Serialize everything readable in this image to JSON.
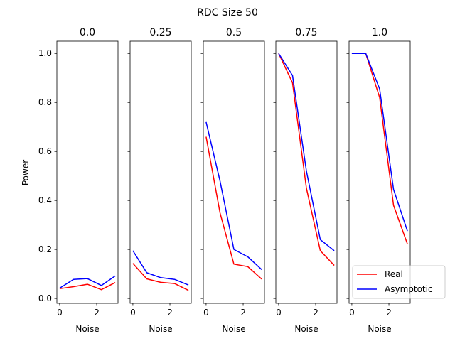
{
  "chart_data": {
    "suptitle": "RDC Size 50",
    "type": "line",
    "ylabel": "Power",
    "xlabel": "Noise",
    "x": [
      0,
      0.75,
      1.5,
      2.25,
      3.0
    ],
    "xlim": [
      -0.15,
      3.15
    ],
    "ylim": [
      -0.02,
      1.05
    ],
    "xticks": [
      0,
      2
    ],
    "yticks": [
      0.0,
      0.2,
      0.4,
      0.6,
      0.8,
      1.0
    ],
    "ytick_labels": [
      "0.0",
      "0.2",
      "0.4",
      "0.6",
      "0.8",
      "1.0"
    ],
    "legend": {
      "location": "lower right",
      "entries": [
        "Real",
        "Asymptotic"
      ]
    },
    "series_styles": [
      {
        "name": "Real",
        "color": "#ff0000"
      },
      {
        "name": "Asymptotic",
        "color": "#0000ff"
      }
    ],
    "panels": [
      {
        "title": "0.0",
        "series": [
          {
            "name": "Real",
            "values": [
              0.04,
              0.048,
              0.058,
              0.036,
              0.065
            ]
          },
          {
            "name": "Asymptotic",
            "values": [
              0.042,
              0.078,
              0.081,
              0.053,
              0.092
            ]
          }
        ]
      },
      {
        "title": "0.25",
        "series": [
          {
            "name": "Real",
            "values": [
              0.143,
              0.08,
              0.066,
              0.061,
              0.033
            ]
          },
          {
            "name": "Asymptotic",
            "values": [
              0.195,
              0.105,
              0.085,
              0.078,
              0.055
            ]
          }
        ]
      },
      {
        "title": "0.5",
        "series": [
          {
            "name": "Real",
            "values": [
              0.66,
              0.35,
              0.14,
              0.13,
              0.079
            ]
          },
          {
            "name": "Asymptotic",
            "values": [
              0.72,
              0.48,
              0.2,
              0.17,
              0.118
            ]
          }
        ]
      },
      {
        "title": "0.75",
        "series": [
          {
            "name": "Real",
            "values": [
              1.0,
              0.88,
              0.45,
              0.195,
              0.135
            ]
          },
          {
            "name": "Asymptotic",
            "values": [
              1.0,
              0.91,
              0.52,
              0.24,
              0.195
            ]
          }
        ]
      },
      {
        "title": "1.0",
        "series": [
          {
            "name": "Real",
            "values": [
              1.0,
              1.0,
              0.82,
              0.38,
              0.222
            ]
          },
          {
            "name": "Asymptotic",
            "values": [
              1.0,
              1.0,
              0.855,
              0.445,
              0.275
            ]
          }
        ]
      }
    ]
  }
}
